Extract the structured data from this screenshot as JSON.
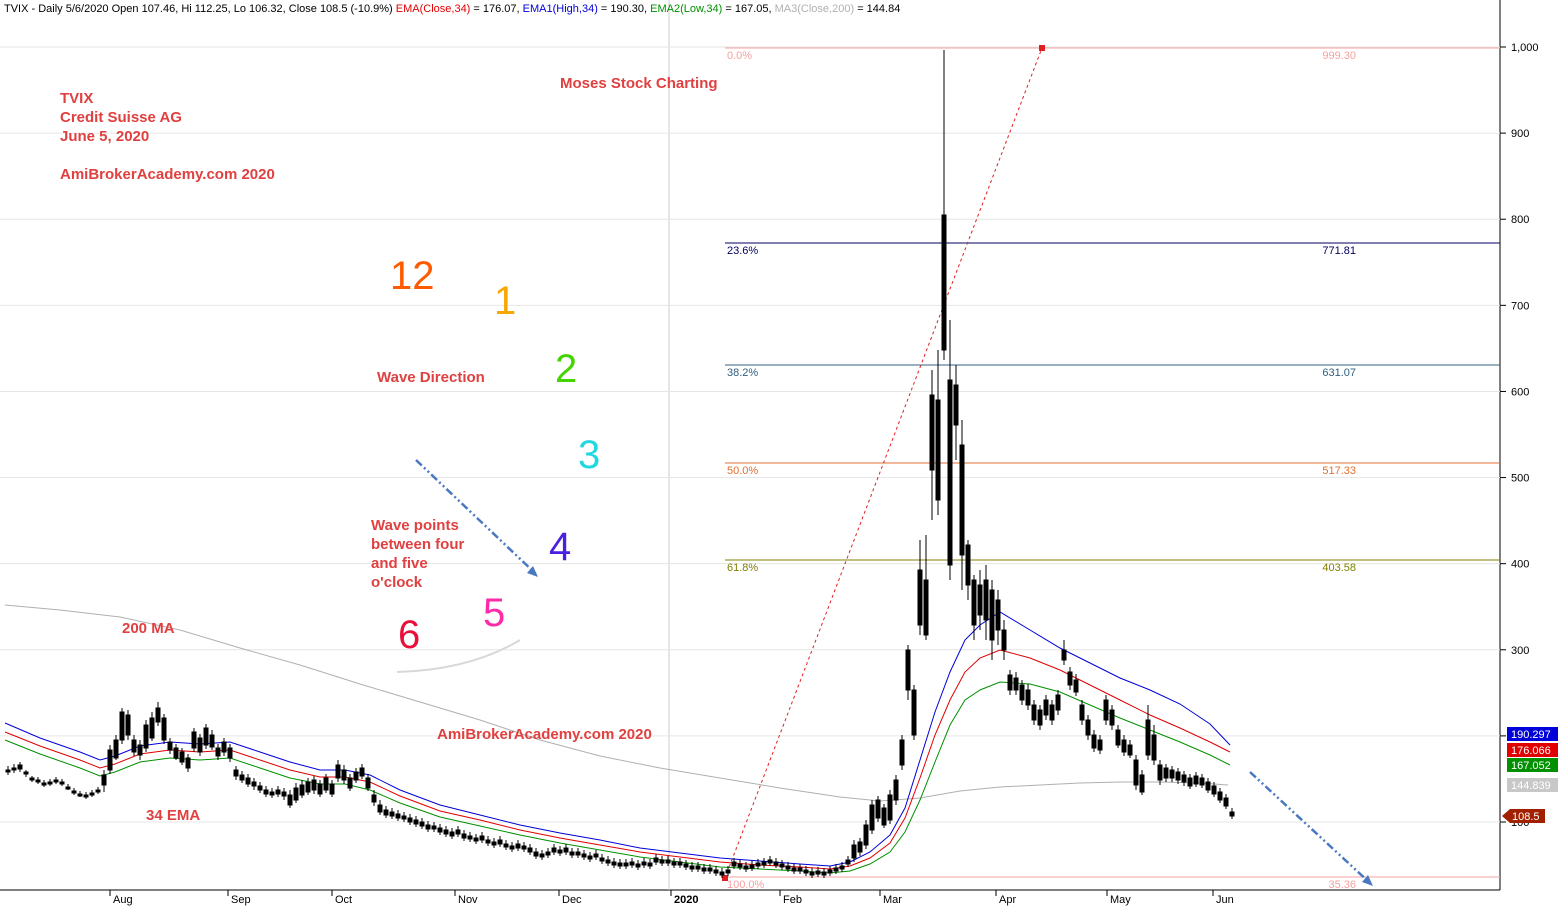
{
  "header": {
    "symbol_line": "TVIX - Daily 5/6/2020 Open 107.46, Hi 112.25, Lo 106.32, Close 108.5 (-10.9%)",
    "ema_label": "EMA(Close,34)",
    "ema_value": " = 176.07,",
    "ema1_label": "EMA1(High,34)",
    "ema1_value": " = 190.30,",
    "ema2_label": "EMA2(Low,34)",
    "ema2_value": " = 167.05,",
    "ma3_label": "MA3(Close,200)",
    "ma3_value": " = 144.84"
  },
  "annotations": {
    "ticker": "TVIX",
    "company": "Credit Suisse AG",
    "date": "June 5, 2020",
    "site_top": "AmiBrokerAcademy.com  2020",
    "brand": "Moses Stock Charting",
    "wave_direction": "Wave Direction",
    "wave_points": [
      "Wave points",
      "between four",
      "and five",
      "o'clock"
    ],
    "ma200": "200 MA",
    "site_mid": "AmiBrokerAcademy.com   2020",
    "ema34": "34 EMA"
  },
  "clock_numbers": [
    {
      "text": "12",
      "color": "#ff5a00"
    },
    {
      "text": "1",
      "color": "#f5a800"
    },
    {
      "text": "2",
      "color": "#44d400"
    },
    {
      "text": "3",
      "color": "#22d8e0"
    },
    {
      "text": "4",
      "color": "#4a1fe0"
    },
    {
      "text": "5",
      "color": "#ff2aa8"
    },
    {
      "text": "6",
      "color": "#e8103a"
    }
  ],
  "colors": {
    "ema_close": "#e00000",
    "ema_high": "#0000d8",
    "ema_low": "#009000",
    "ma200": "#b0b0b0",
    "price_badge": "#a02000",
    "candle": "#000000",
    "candle_up": "#b04020",
    "trend_arrow": "#4a78c0"
  },
  "chart_data": {
    "type": "candlestick",
    "title": "TVIX - Daily",
    "y_axis": {
      "ticks": [
        "100",
        "200",
        "300",
        "400",
        "500",
        "600",
        "700",
        "800",
        "900",
        "1,000"
      ],
      "values": [
        100,
        200,
        300,
        400,
        500,
        600,
        700,
        800,
        900,
        1000
      ],
      "position": "right"
    },
    "x_axis": {
      "ticks": [
        "Aug",
        "Sep",
        "Oct",
        "Nov",
        "Dec",
        "2020",
        "Feb",
        "Mar",
        "Apr",
        "May",
        "Jun"
      ]
    },
    "fibonacci": [
      {
        "pct": "0.0%",
        "price": "999.30",
        "value": 999.3,
        "color": "#f4a0a0"
      },
      {
        "pct": "23.6%",
        "price": "771.81",
        "value": 771.81,
        "color": "#000060"
      },
      {
        "pct": "38.2%",
        "price": "631.07",
        "value": 631.07,
        "color": "#306080"
      },
      {
        "pct": "50.0%",
        "price": "517.33",
        "value": 517.33,
        "color": "#e07030"
      },
      {
        "pct": "61.8%",
        "price": "403.58",
        "value": 403.58,
        "color": "#808000"
      },
      {
        "pct": "100.0%",
        "price": "35.36",
        "value": 35.36,
        "color": "#f4a0a0"
      }
    ],
    "indicator_badges": [
      {
        "label": "190.297",
        "value": 190.297,
        "color": "#0000d8"
      },
      {
        "label": "176.066",
        "value": 176.066,
        "color": "#e00000"
      },
      {
        "label": "167.052",
        "value": 167.052,
        "color": "#009000"
      },
      {
        "label": "144.839",
        "value": 144.839,
        "color": "#c8c8c8"
      },
      {
        "label": "108.5",
        "value": 108.5,
        "color": "#a02000"
      }
    ],
    "ohlc_approx": [
      {
        "date": "2019-07-25",
        "close": 150
      },
      {
        "date": "2019-08-05",
        "close": 182
      },
      {
        "date": "2019-08-20",
        "close": 200
      },
      {
        "date": "2019-09-03",
        "close": 175
      },
      {
        "date": "2019-09-15",
        "close": 145
      },
      {
        "date": "2019-10-01",
        "close": 135
      },
      {
        "date": "2019-10-10",
        "close": 148
      },
      {
        "date": "2019-11-01",
        "close": 112
      },
      {
        "date": "2019-12-01",
        "close": 82
      },
      {
        "date": "2020-01-02",
        "close": 65
      },
      {
        "date": "2020-02-01",
        "close": 48
      },
      {
        "date": "2020-02-25",
        "close": 70
      },
      {
        "date": "2020-03-05",
        "close": 230
      },
      {
        "date": "2020-03-10",
        "close": 380
      },
      {
        "date": "2020-03-18",
        "close": 998
      },
      {
        "date": "2020-03-20",
        "close": 420
      },
      {
        "date": "2020-04-01",
        "close": 330
      },
      {
        "date": "2020-04-15",
        "close": 220
      },
      {
        "date": "2020-05-01",
        "close": 175
      },
      {
        "date": "2020-05-15",
        "close": 165
      },
      {
        "date": "2020-06-05",
        "close": 108.5
      }
    ]
  }
}
